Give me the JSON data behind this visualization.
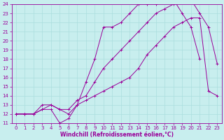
{
  "xlabel": "Windchill (Refroidissement éolien,°C)",
  "xlim": [
    -0.5,
    23.5
  ],
  "ylim": [
    11,
    24
  ],
  "yticks": [
    11,
    12,
    13,
    14,
    15,
    16,
    17,
    18,
    19,
    20,
    21,
    22,
    23,
    24
  ],
  "xticks": [
    0,
    1,
    2,
    3,
    4,
    5,
    6,
    7,
    8,
    9,
    10,
    11,
    12,
    13,
    14,
    15,
    16,
    17,
    18,
    19,
    20,
    21,
    22,
    23
  ],
  "bg_color": "#c8eeee",
  "line_color": "#990099",
  "grid_color": "#aadddd",
  "series1_x": [
    0,
    1,
    2,
    3,
    4,
    5,
    6,
    7,
    8,
    9,
    10,
    11,
    12,
    13,
    14,
    15,
    16,
    17,
    18,
    19,
    20,
    21
  ],
  "series1_y": [
    12.0,
    12.0,
    12.0,
    12.5,
    12.5,
    11.0,
    11.5,
    13.0,
    15.5,
    18.0,
    21.5,
    21.5,
    22.0,
    23.0,
    24.0,
    24.0,
    24.0,
    24.5,
    24.5,
    23.0,
    21.5,
    18.0
  ],
  "series2_x": [
    0,
    1,
    2,
    3,
    4,
    5,
    6,
    7,
    8,
    9,
    10,
    11,
    12,
    13,
    14,
    15,
    16,
    17,
    18,
    19,
    20,
    21,
    22,
    23
  ],
  "series2_y": [
    12.0,
    12.0,
    12.0,
    12.5,
    13.0,
    12.5,
    12.5,
    13.5,
    14.0,
    15.5,
    17.0,
    18.0,
    19.0,
    20.0,
    21.0,
    22.0,
    23.0,
    23.5,
    24.0,
    24.5,
    24.5,
    23.0,
    21.5,
    17.5
  ],
  "series3_x": [
    0,
    1,
    2,
    3,
    4,
    5,
    6,
    7,
    8,
    9,
    10,
    11,
    12,
    13,
    14,
    15,
    16,
    17,
    18,
    19,
    20,
    21,
    22,
    23
  ],
  "series3_y": [
    12.0,
    12.0,
    12.0,
    13.0,
    13.0,
    12.5,
    12.0,
    13.0,
    13.5,
    14.0,
    14.5,
    15.0,
    15.5,
    16.0,
    17.0,
    18.5,
    19.5,
    20.5,
    21.5,
    22.0,
    22.5,
    22.5,
    14.5,
    14.0
  ],
  "tick_fontsize": 5,
  "xlabel_fontsize": 5.5,
  "xlabel_fontweight": "bold"
}
